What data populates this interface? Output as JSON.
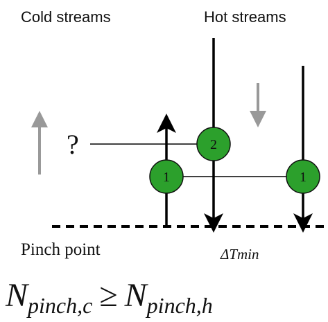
{
  "labels": {
    "cold": "Cold streams",
    "hot": "Hot streams",
    "question": "?",
    "pinch": "Pinch point",
    "delta": "ΔTmin"
  },
  "nodes": [
    {
      "label": "2"
    },
    {
      "label": "1"
    },
    {
      "label": "1"
    }
  ],
  "formula": {
    "lhs": "N",
    "lhs_sub": "pinch,c",
    "relation": "≥",
    "rhs": "N",
    "rhs_sub": "pinch,h"
  }
}
